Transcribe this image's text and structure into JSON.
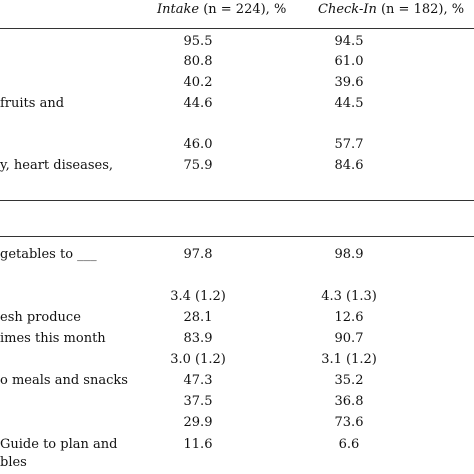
{
  "header": {
    "intake_label": "Intake",
    "intake_n": " (n = 224), %",
    "checkin_label": "Check-In",
    "checkin_n": " (n = 182), %"
  },
  "rows": [
    {
      "label": "",
      "intake": "95.5",
      "checkin": "94.5"
    },
    {
      "label": "",
      "intake": "80.8",
      "checkin": "61.0"
    },
    {
      "label": "",
      "intake": "40.2",
      "checkin": "39.6"
    },
    {
      "label": "fruits and",
      "intake": "44.6",
      "checkin": "44.5"
    },
    {
      "label": "",
      "intake": "46.0",
      "checkin": "57.7"
    },
    {
      "label": "y, heart diseases,",
      "intake": "75.9",
      "checkin": "84.6"
    },
    {
      "label": "getables to ___",
      "intake": "97.8",
      "checkin": "98.9"
    },
    {
      "label": "",
      "intake": "3.4 (1.2)",
      "checkin": "4.3 (1.3)"
    },
    {
      "label": "esh produce",
      "intake": "28.1",
      "checkin": "12.6"
    },
    {
      "label": "imes this month",
      "intake": "83.9",
      "checkin": "90.7"
    },
    {
      "label": "",
      "intake": "3.0 (1.2)",
      "checkin": "3.1 (1.2)"
    },
    {
      "label": "o meals and snacks",
      "intake": "47.3",
      "checkin": "35.2"
    },
    {
      "label": "",
      "intake": "37.5",
      "checkin": "36.8"
    },
    {
      "label": "",
      "intake": "29.9",
      "checkin": "73.6"
    },
    {
      "label": "Guide to plan and",
      "intake": "11.6",
      "checkin": "6.6"
    },
    {
      "label": "bles",
      "intake": "",
      "checkin": ""
    }
  ]
}
